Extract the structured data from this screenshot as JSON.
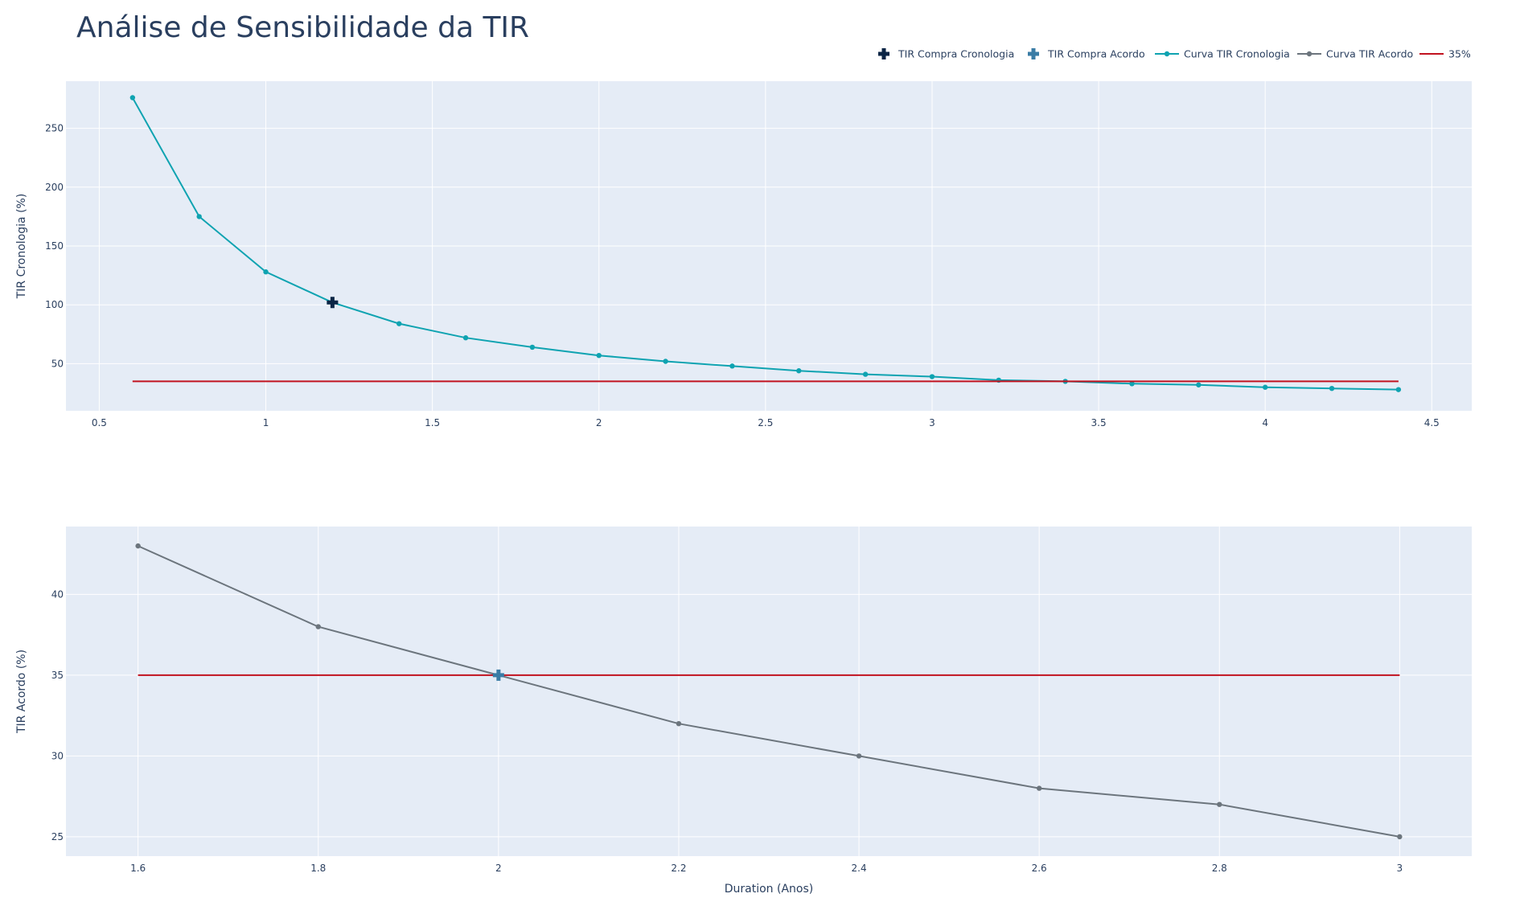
{
  "title": "Análise de Sensibilidade da TIR",
  "colors": {
    "plot_bg": "#e5ecf6",
    "grid": "#ffffff",
    "cronologia": "#0fa3b1",
    "acordo": "#6c757d",
    "ref_line": "#c1121f",
    "compra_cronologia": "#0b2545",
    "compra_acordo": "#3a7ca5",
    "text": "#2a3f5f"
  },
  "legend": {
    "placement": "top-right",
    "items": [
      {
        "label": "TIR Compra Cronologia",
        "symbol": "cross",
        "color": "#0b2545"
      },
      {
        "label": "TIR Compra Acordo",
        "symbol": "cross",
        "color": "#3a7ca5"
      },
      {
        "label": "Curva TIR Cronologia",
        "symbol": "line-marker",
        "color": "#0fa3b1"
      },
      {
        "label": "Curva TIR Acordo",
        "symbol": "line-marker",
        "color": "#6c757d"
      },
      {
        "label": "35%",
        "symbol": "line",
        "color": "#c1121f"
      }
    ]
  },
  "chart_data": [
    {
      "type": "line",
      "xlabel": "",
      "ylabel": "TIR Cronologia (%)",
      "xlim": [
        0.4,
        4.62
      ],
      "ylim": [
        10,
        290
      ],
      "xticks": [
        0.5,
        1,
        1.5,
        2,
        2.5,
        3,
        3.5,
        4,
        4.5
      ],
      "xtick_labels": [
        "0.5",
        "1",
        "1.5",
        "2",
        "2.5",
        "3",
        "3.5",
        "4",
        "4.5"
      ],
      "yticks": [
        50,
        100,
        150,
        200,
        250
      ],
      "ytick_labels": [
        "50",
        "100",
        "150",
        "200",
        "250"
      ],
      "grid": true,
      "series": [
        {
          "name": "Curva TIR Cronologia",
          "color": "#0fa3b1",
          "mode": "lines+markers",
          "x": [
            0.6,
            0.8,
            1.0,
            1.2,
            1.4,
            1.6,
            1.8,
            2.0,
            2.2,
            2.4,
            2.6,
            2.8,
            3.0,
            3.2,
            3.4,
            3.6,
            3.8,
            4.0,
            4.2,
            4.4
          ],
          "y": [
            276,
            175,
            128,
            102,
            84,
            72,
            64,
            57,
            52,
            48,
            44,
            41,
            39,
            36,
            35,
            33,
            32,
            30,
            29,
            28
          ]
        },
        {
          "name": "35%",
          "color": "#c1121f",
          "mode": "lines",
          "x": [
            0.6,
            4.4
          ],
          "y": [
            35,
            35
          ]
        },
        {
          "name": "TIR Compra Cronologia",
          "color": "#0b2545",
          "mode": "markers",
          "symbol": "cross",
          "x": [
            1.2
          ],
          "y": [
            102
          ]
        }
      ]
    },
    {
      "type": "line",
      "xlabel": "Duration (Anos)",
      "ylabel": "TIR Acordo (%)",
      "xlim": [
        1.52,
        3.08
      ],
      "ylim": [
        23.8,
        44.2
      ],
      "xticks": [
        1.6,
        1.8,
        2.0,
        2.2,
        2.4,
        2.6,
        2.8,
        3.0
      ],
      "xtick_labels": [
        "1.6",
        "1.8",
        "2",
        "2.2",
        "2.4",
        "2.6",
        "2.8",
        "3"
      ],
      "yticks": [
        25,
        30,
        35,
        40
      ],
      "ytick_labels": [
        "25",
        "30",
        "35",
        "40"
      ],
      "grid": true,
      "series": [
        {
          "name": "Curva TIR Acordo",
          "color": "#6c757d",
          "mode": "lines+markers",
          "x": [
            1.6,
            1.8,
            2.0,
            2.2,
            2.4,
            2.6,
            2.8,
            3.0
          ],
          "y": [
            43,
            38,
            35,
            32,
            30,
            28,
            27,
            25
          ]
        },
        {
          "name": "35%",
          "color": "#c1121f",
          "mode": "lines",
          "x": [
            1.6,
            3.0
          ],
          "y": [
            35,
            35
          ]
        },
        {
          "name": "TIR Compra Acordo",
          "color": "#3a7ca5",
          "mode": "markers",
          "symbol": "cross",
          "x": [
            2.0
          ],
          "y": [
            35
          ]
        }
      ]
    }
  ]
}
